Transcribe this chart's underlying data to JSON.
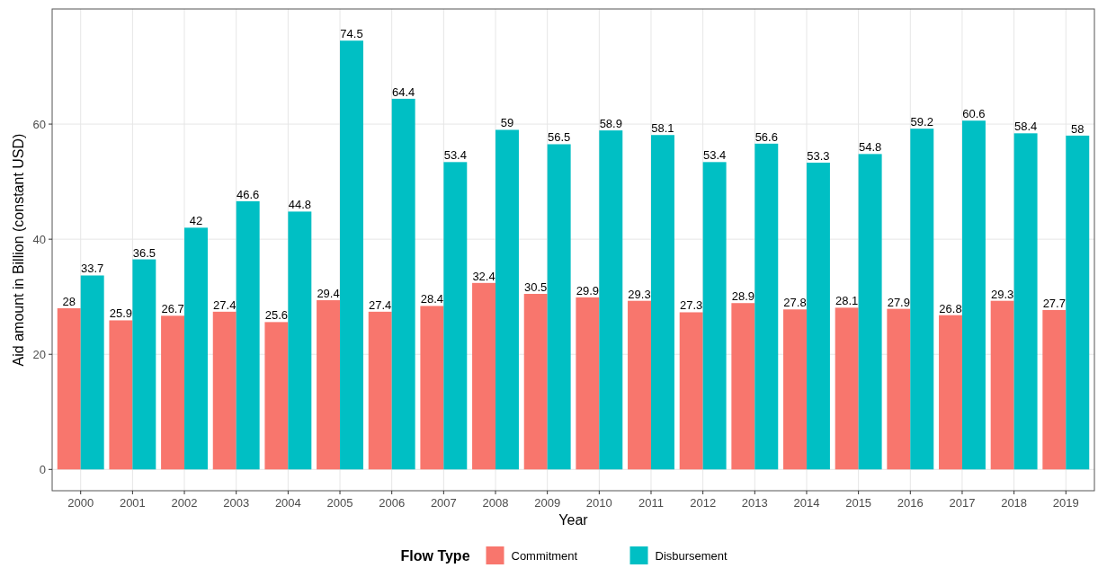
{
  "chart_data": {
    "type": "bar",
    "xlabel": "Year",
    "ylabel": "Aid amount in Billion (constant USD)",
    "legend_title": "Flow Type",
    "categories": [
      "2000",
      "2001",
      "2002",
      "2003",
      "2004",
      "2005",
      "2006",
      "2007",
      "2008",
      "2009",
      "2010",
      "2011",
      "2012",
      "2013",
      "2014",
      "2015",
      "2016",
      "2017",
      "2018",
      "2019"
    ],
    "series": [
      {
        "name": "Commitment",
        "color": "#f8766d",
        "values": [
          28,
          25.9,
          26.7,
          27.4,
          25.6,
          29.4,
          27.4,
          28.4,
          32.4,
          30.5,
          29.9,
          29.3,
          27.3,
          28.9,
          27.8,
          28.1,
          27.9,
          26.8,
          29.3,
          27.7
        ]
      },
      {
        "name": "Disbursement",
        "color": "#00bfc4",
        "values": [
          33.7,
          36.5,
          42,
          46.6,
          44.8,
          74.5,
          64.4,
          53.4,
          59,
          56.5,
          58.9,
          58.1,
          53.4,
          56.6,
          53.3,
          54.8,
          59.2,
          60.6,
          58.4,
          58
        ]
      }
    ],
    "ylim": [
      -3.7,
      80
    ],
    "yticks": [
      0,
      20,
      40,
      60
    ],
    "grid": true,
    "legend": "bottom",
    "data_labels": true
  }
}
